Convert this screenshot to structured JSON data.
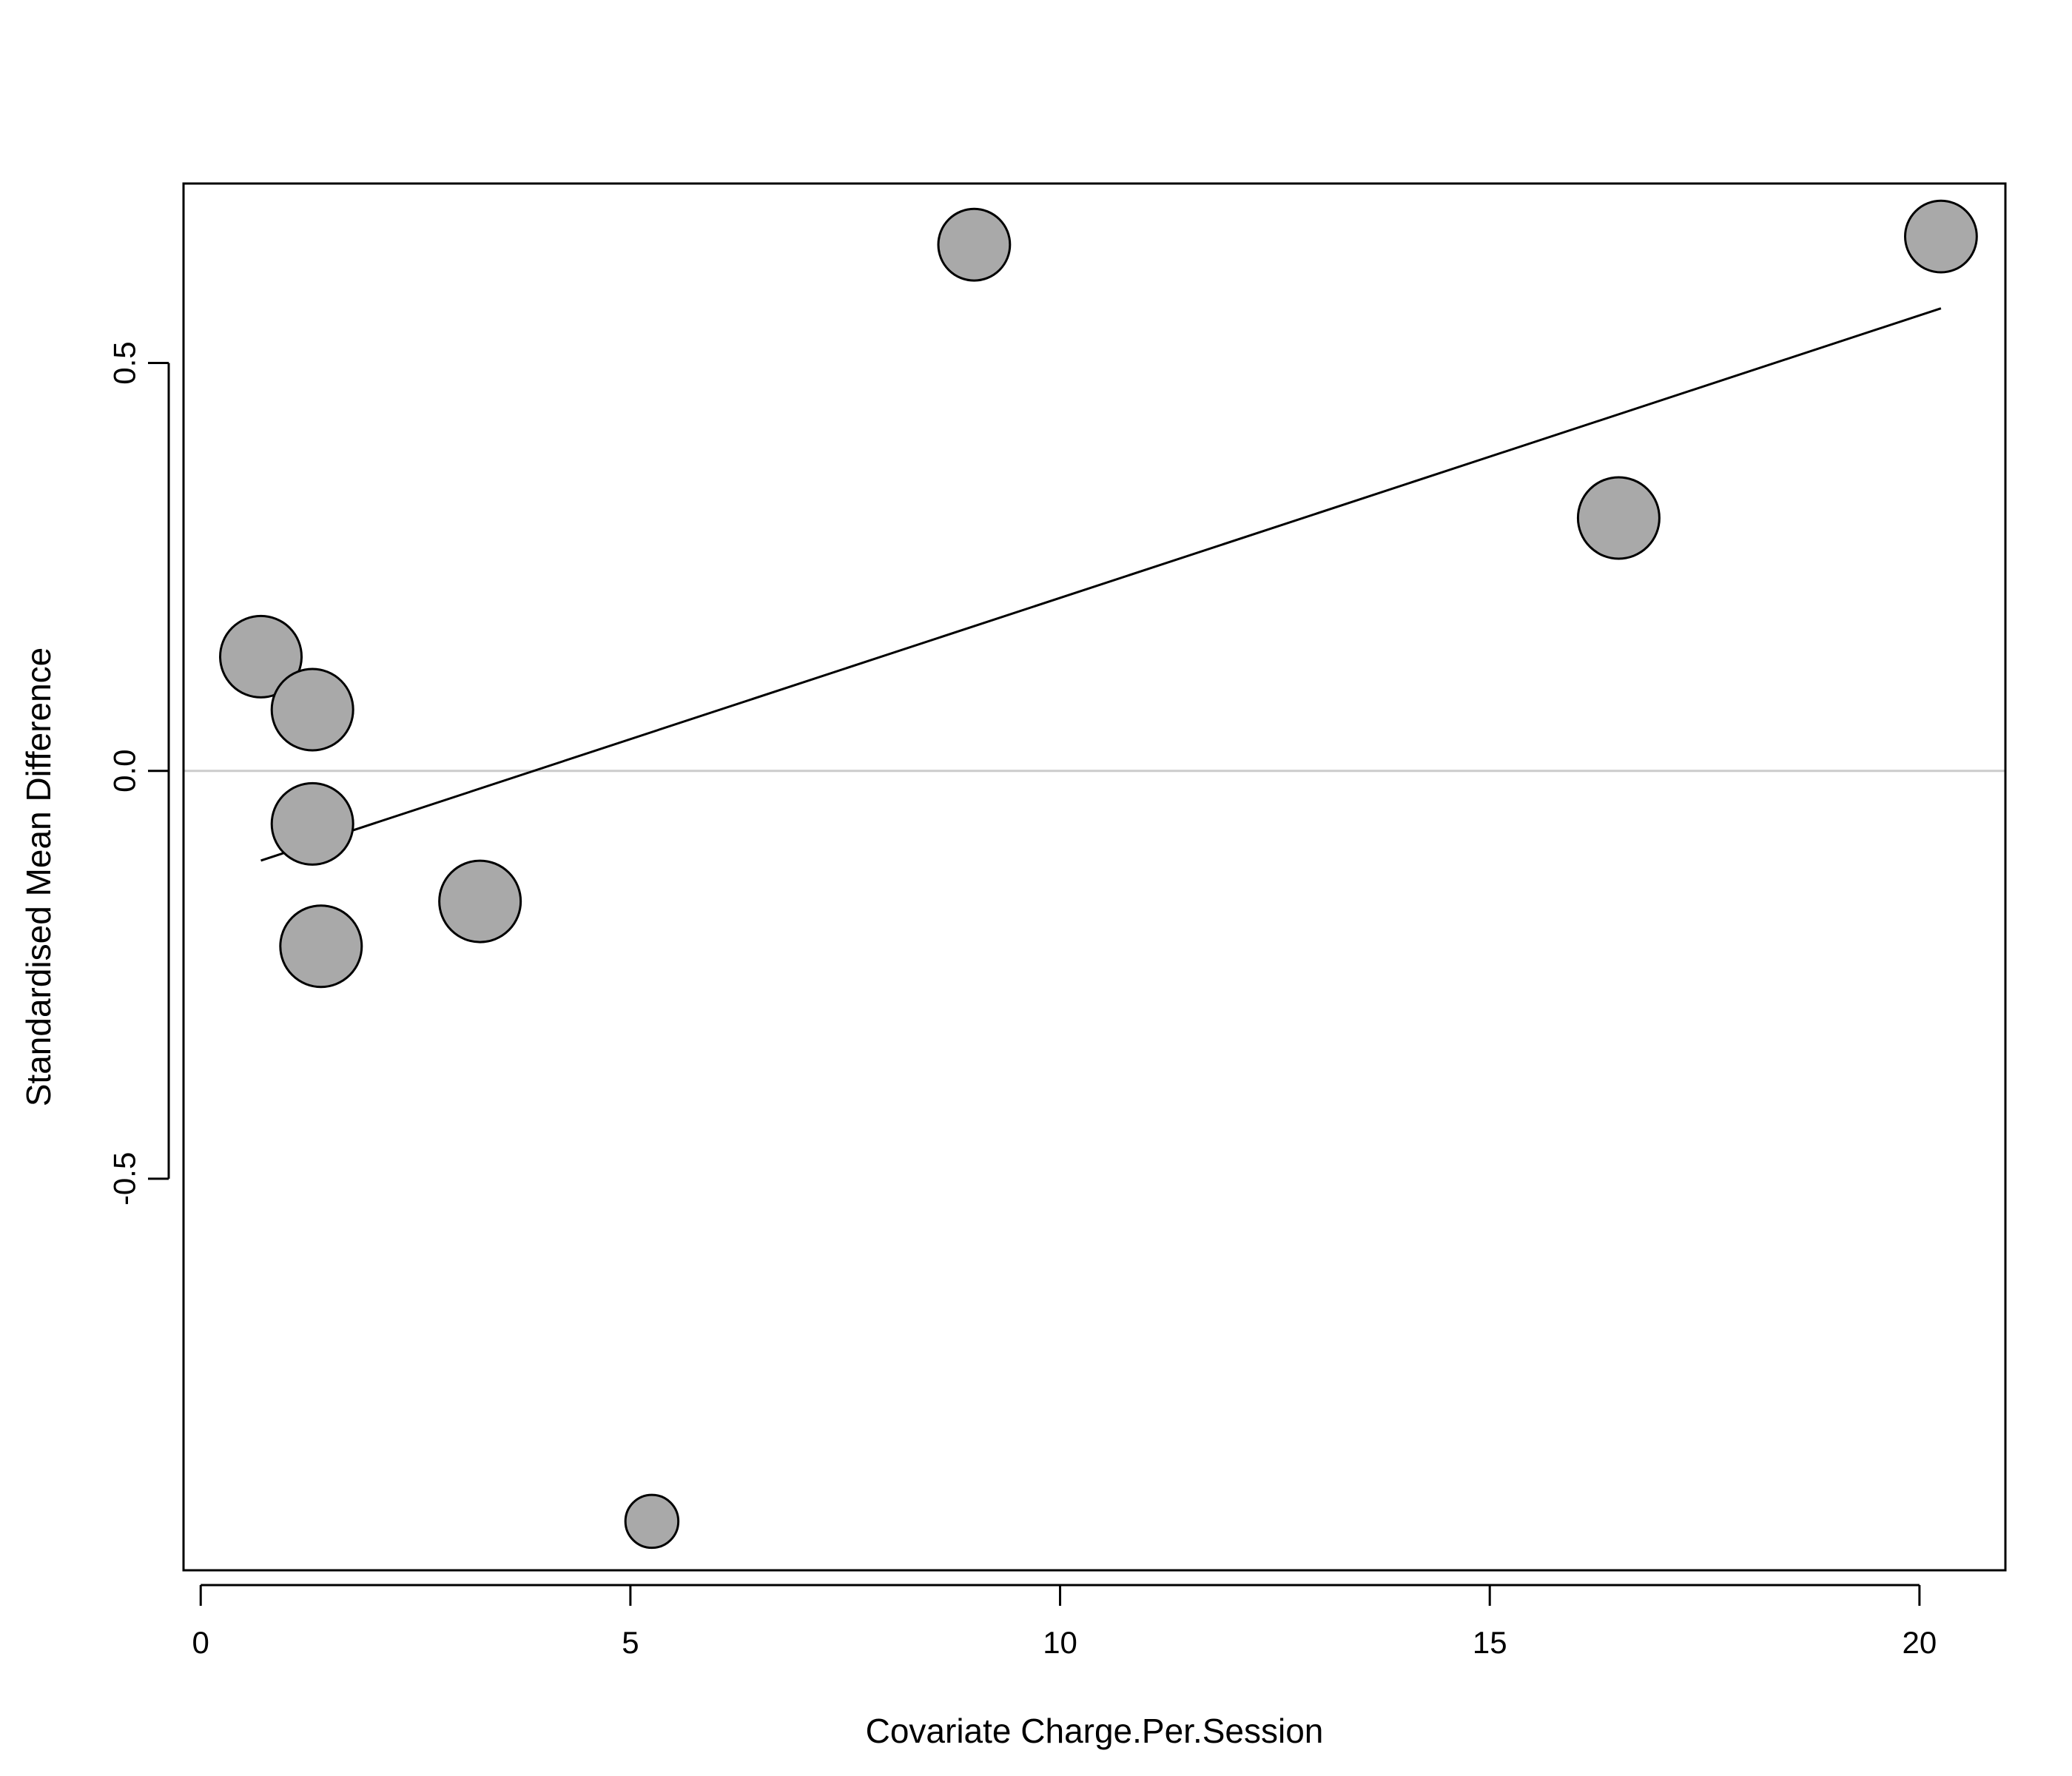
{
  "chart_data": {
    "type": "scatter",
    "xlabel": "Covariate Charge.Per.Session",
    "ylabel": "Standardised Mean Difference",
    "xlim": [
      -0.2,
      21
    ],
    "ylim": [
      -0.98,
      0.72
    ],
    "xticks": [
      0,
      5,
      10,
      15,
      20
    ],
    "yticks": [
      -0.5,
      0.0,
      0.5
    ],
    "xtick_labels": [
      "0",
      "5",
      "10",
      "15",
      "20"
    ],
    "ytick_labels": [
      "-0.5",
      "0.0",
      "0.5"
    ],
    "grid": false,
    "reference_line_y": 0,
    "points": [
      {
        "x": 0.7,
        "y": 0.14,
        "weight": 1.0
      },
      {
        "x": 1.3,
        "y": 0.075,
        "weight": 1.0
      },
      {
        "x": 1.3,
        "y": -0.065,
        "weight": 1.0
      },
      {
        "x": 1.4,
        "y": -0.215,
        "weight": 1.0
      },
      {
        "x": 3.25,
        "y": -0.16,
        "weight": 1.0
      },
      {
        "x": 5.25,
        "y": -0.92,
        "weight": 0.65
      },
      {
        "x": 9.0,
        "y": 0.645,
        "weight": 0.88
      },
      {
        "x": 16.5,
        "y": 0.31,
        "weight": 1.0
      },
      {
        "x": 20.25,
        "y": 0.655,
        "weight": 0.88
      }
    ],
    "regression_line": {
      "x": [
        0.7,
        20.25
      ],
      "y": [
        -0.11,
        0.567
      ]
    },
    "colors": {
      "point_fill": "#a9a9a9",
      "point_stroke": "#000000",
      "reference_line": "#cccccc",
      "regression_line": "#000000"
    }
  }
}
